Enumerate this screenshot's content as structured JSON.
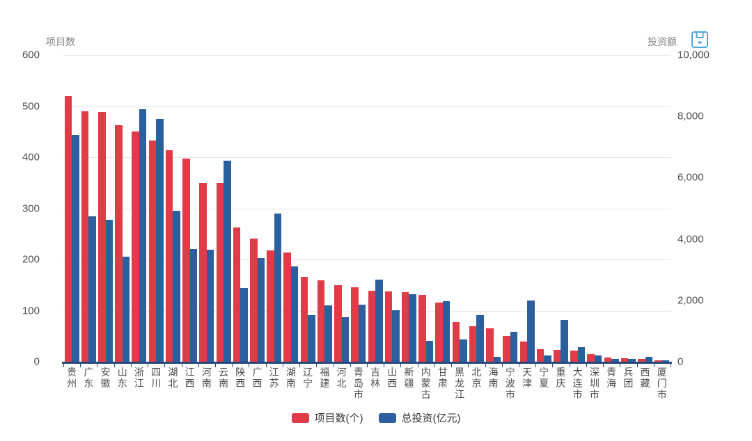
{
  "left_axis": {
    "name": "项目数",
    "tick_labels": [
      "600",
      "500",
      "400",
      "300",
      "200",
      "100",
      "0"
    ],
    "max": 600,
    "min": 0,
    "interval": 100
  },
  "right_axis": {
    "name": "投资额",
    "tick_labels": [
      "10,000",
      "8,000",
      "6,000",
      "4,000",
      "2,000",
      "0"
    ],
    "max": 10000,
    "min": 0,
    "interval": 2000
  },
  "toolbar": {
    "save_icon": "save-image-icon",
    "save_icon_color": "#4da6d9"
  },
  "legend": {
    "items": [
      {
        "label": "项目数(个)",
        "color": "#e03b46"
      },
      {
        "label": "总投资(亿元)",
        "color": "#2c5f9d"
      }
    ]
  },
  "colors": {
    "projects_red": "#e03b46",
    "investment_blue": "#2c5f9d",
    "axis_line": "#27497c",
    "gridline": "#e6e6e6",
    "tick_text": "#4c4c4c",
    "axis_name_text": "#828282"
  },
  "chart_data": {
    "type": "bar",
    "title": "",
    "xlabel": "",
    "ylabel_left": "项目数",
    "ylabel_right": "投资额",
    "ylim_left": [
      0,
      600
    ],
    "ylim_right": [
      0,
      10000
    ],
    "grid": true,
    "legend_position": "bottom",
    "categories": [
      "贵州",
      "广东",
      "安徽",
      "山东",
      "浙江",
      "四川",
      "湖北",
      "江西",
      "河南",
      "云南",
      "陕西",
      "广西",
      "江苏",
      "湖南",
      "辽宁",
      "福建",
      "河北",
      "青岛市",
      "吉林",
      "山西",
      "新疆",
      "内蒙古",
      "甘肃",
      "黑龙江",
      "北京",
      "海南",
      "宁波市",
      "天津",
      "宁夏",
      "重庆",
      "大连市",
      "深圳市",
      "青海",
      "兵团",
      "西藏",
      "厦门市"
    ],
    "series": [
      {
        "name": "项目数(个)",
        "axis": "left",
        "color": "#e03b46",
        "values": [
          520,
          490,
          488,
          463,
          450,
          433,
          414,
          397,
          350,
          350,
          262,
          241,
          218,
          213,
          166,
          159,
          150,
          146,
          139,
          137,
          136,
          131,
          116,
          78,
          70,
          66,
          50,
          40,
          25,
          23,
          22,
          15,
          8,
          7,
          5,
          3
        ]
      },
      {
        "name": "总投资(亿元)",
        "axis": "right",
        "color": "#2c5f9d",
        "values": [
          7400,
          4750,
          4620,
          3420,
          8230,
          7920,
          4920,
          3670,
          3650,
          6560,
          2400,
          3380,
          4830,
          3100,
          1520,
          1830,
          1450,
          1850,
          2680,
          1670,
          2200,
          670,
          1970,
          720,
          1530,
          150,
          980,
          2000,
          200,
          1370,
          470,
          200,
          90,
          100,
          150,
          35
        ]
      }
    ]
  }
}
